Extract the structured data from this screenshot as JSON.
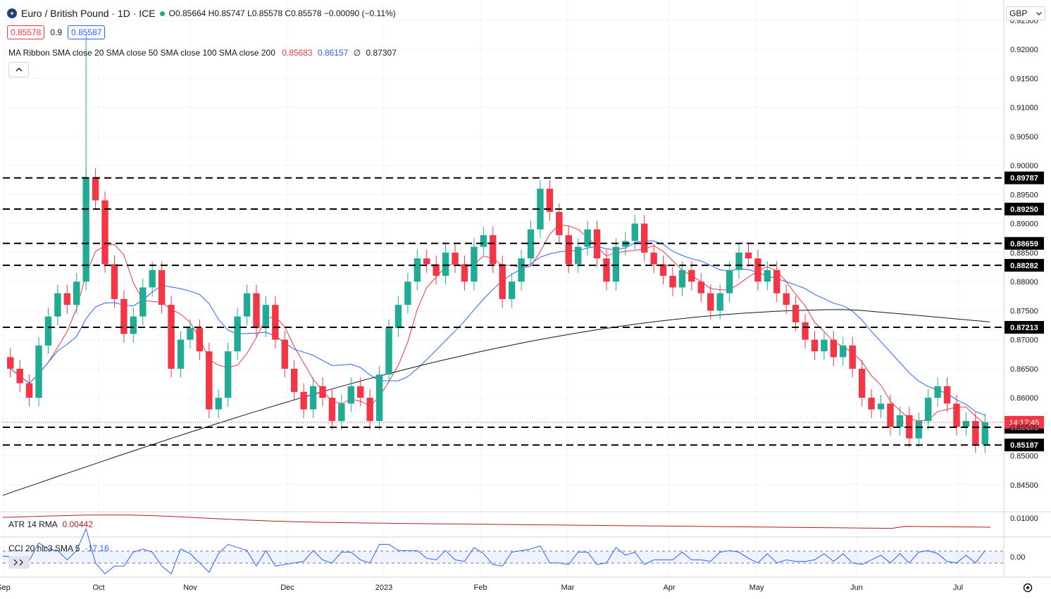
{
  "header": {
    "title": "Euro / British Pound · 1D · ICE",
    "ohlc": "O0.85664 H0.85747 L0.85578 C0.85578 −0.00090 (−0.11%)",
    "bid": "0.85578",
    "spread": "0.9",
    "ask": "0.85587",
    "currency": "GBP"
  },
  "indicators": {
    "ma_label": "MA Ribbon SMA close 20 SMA close 50 SMA close 100 SMA close 200",
    "ma_values": [
      "0.85683",
      "0.86157",
      "∅",
      "0.87307"
    ],
    "atr_label": "ATR 14 RMA",
    "atr_value": "0.00442",
    "cci_label": "CCI 20 hlc3 SMA 5",
    "cci_value": "-17.16"
  },
  "colors": {
    "bull": "#22ab94",
    "bear": "#f23645",
    "sma20": "#f23645",
    "sma50": "#2962ff",
    "sma200": "#131722",
    "atr": "#b71c1c",
    "cci": "#2962ff"
  },
  "chart_data": {
    "type": "line",
    "instrument": "Euro / British Pound",
    "timeframe": "1D",
    "y_axis_ticks": [
      "0.92500",
      "0.92000",
      "0.91500",
      "0.91000",
      "0.90500",
      "0.90000",
      "0.89500",
      "0.89000",
      "0.88500",
      "0.88000",
      "0.87500",
      "0.87000",
      "0.86500",
      "0.86000",
      "0.85500",
      "0.85000",
      "0.84500"
    ],
    "ylim": [
      0.8405,
      0.9285
    ],
    "x_axis_labels": [
      "Sep",
      "Oct",
      "Nov",
      "Dec",
      "2023",
      "Feb",
      "Mar",
      "Apr",
      "May",
      "Jun",
      "Jul"
    ],
    "horizontal_levels": [
      "0.89787",
      "0.89250",
      "0.88659",
      "0.88282",
      "0.87213",
      "0.85493",
      "0.85187"
    ],
    "current_price": 0.85578,
    "countdown_label": "14:17:45",
    "candles_close_approx": [
      0.865,
      0.8625,
      0.86,
      0.869,
      0.874,
      0.878,
      0.876,
      0.88,
      0.898,
      0.894,
      0.883,
      0.877,
      0.871,
      0.874,
      0.879,
      0.882,
      0.876,
      0.865,
      0.87,
      0.872,
      0.868,
      0.858,
      0.86,
      0.868,
      0.874,
      0.878,
      0.872,
      0.876,
      0.87,
      0.865,
      0.861,
      0.858,
      0.862,
      0.86,
      0.856,
      0.859,
      0.862,
      0.86,
      0.856,
      0.864,
      0.872,
      0.876,
      0.88,
      0.884,
      0.883,
      0.881,
      0.885,
      0.883,
      0.88,
      0.886,
      0.888,
      0.883,
      0.877,
      0.88,
      0.884,
      0.889,
      0.896,
      0.892,
      0.888,
      0.883,
      0.886,
      0.889,
      0.884,
      0.88,
      0.886,
      0.887,
      0.89,
      0.885,
      0.883,
      0.881,
      0.879,
      0.882,
      0.88,
      0.878,
      0.875,
      0.878,
      0.882,
      0.885,
      0.884,
      0.88,
      0.882,
      0.878,
      0.876,
      0.873,
      0.87,
      0.868,
      0.87,
      0.867,
      0.869,
      0.865,
      0.86,
      0.858,
      0.859,
      0.855,
      0.857,
      0.853,
      0.856,
      0.86,
      0.862,
      0.859,
      0.855,
      0.856,
      0.852,
      0.8558
    ],
    "series": [
      {
        "name": "SMA close 20",
        "end_value": 0.85683
      },
      {
        "name": "SMA close 50",
        "end_value": 0.86157
      },
      {
        "name": "SMA close 200",
        "end_value": 0.87307
      }
    ],
    "lower_panes": [
      {
        "name": "ATR 14 RMA",
        "ticks": [
          "0.01000"
        ],
        "last": 0.00442
      },
      {
        "name": "CCI 20 hlc3 SMA 5",
        "ticks": [
          "0.00"
        ],
        "last": -17.16
      }
    ]
  }
}
